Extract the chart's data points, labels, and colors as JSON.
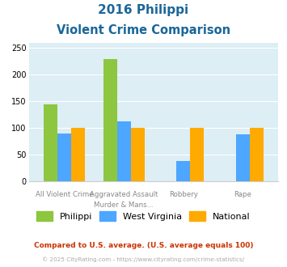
{
  "title_line1": "2016 Philippi",
  "title_line2": "Violent Crime Comparison",
  "cat_labels_top": [
    "All Violent Crime",
    "Aggravated Assault",
    "Robbery",
    "Rape"
  ],
  "cat_labels_bot": [
    "",
    "Murder & Mans...",
    "",
    ""
  ],
  "philippi": [
    145,
    230,
    0,
    0
  ],
  "west_virginia": [
    90,
    113,
    38,
    89
  ],
  "national": [
    100,
    100,
    100,
    100
  ],
  "philippi_color": "#8dc63f",
  "wv_color": "#4da6ff",
  "national_color": "#ffaa00",
  "bg_color": "#ddeef4",
  "title_color": "#1a6699",
  "ylim": [
    0,
    260
  ],
  "yticks": [
    0,
    50,
    100,
    150,
    200,
    250
  ],
  "footer1": "Compared to U.S. average. (U.S. average equals 100)",
  "footer2": "© 2025 CityRating.com - https://www.cityrating.com/crime-statistics/",
  "footer1_color": "#cc3300",
  "footer2_color": "#aaaaaa",
  "label_color": "#888888"
}
